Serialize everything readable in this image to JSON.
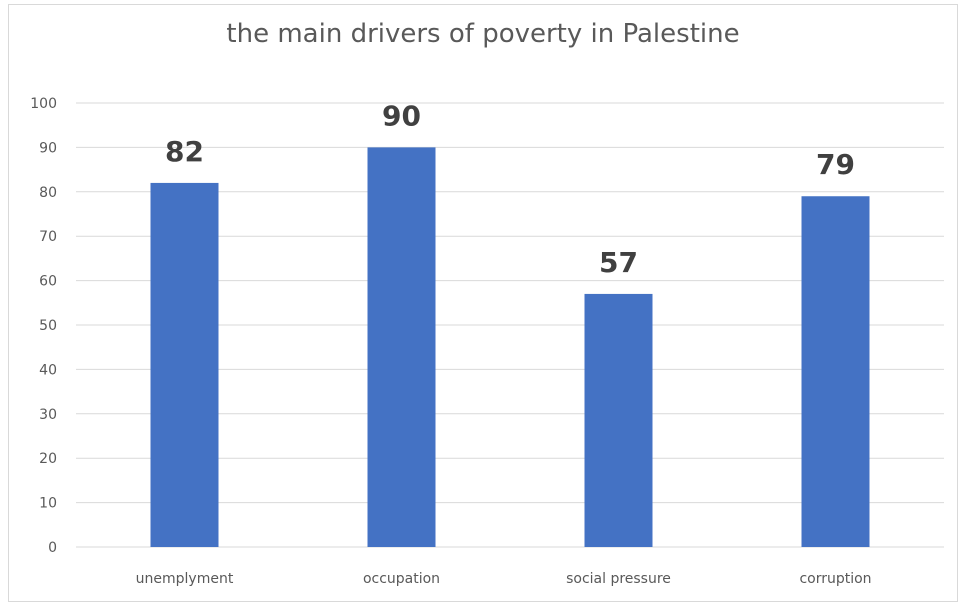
{
  "chart_data": {
    "type": "bar",
    "title": "the main drivers of poverty in Palestine",
    "xlabel": "",
    "ylabel": "",
    "categories": [
      "unemplyment",
      "occupation",
      "social pressure",
      "corruption"
    ],
    "values": [
      82,
      90,
      57,
      79
    ],
    "data_labels": [
      "82",
      "90",
      "57",
      "79"
    ],
    "ylim": [
      0,
      100
    ],
    "yticks": [
      0,
      10,
      20,
      30,
      40,
      50,
      60,
      70,
      80,
      90,
      100
    ],
    "grid": true,
    "legend": "none",
    "colors": {
      "bar": "#4472c4",
      "gridline": "#d9d9d9",
      "axis_text": "#595959",
      "data_label": "#404040"
    }
  }
}
